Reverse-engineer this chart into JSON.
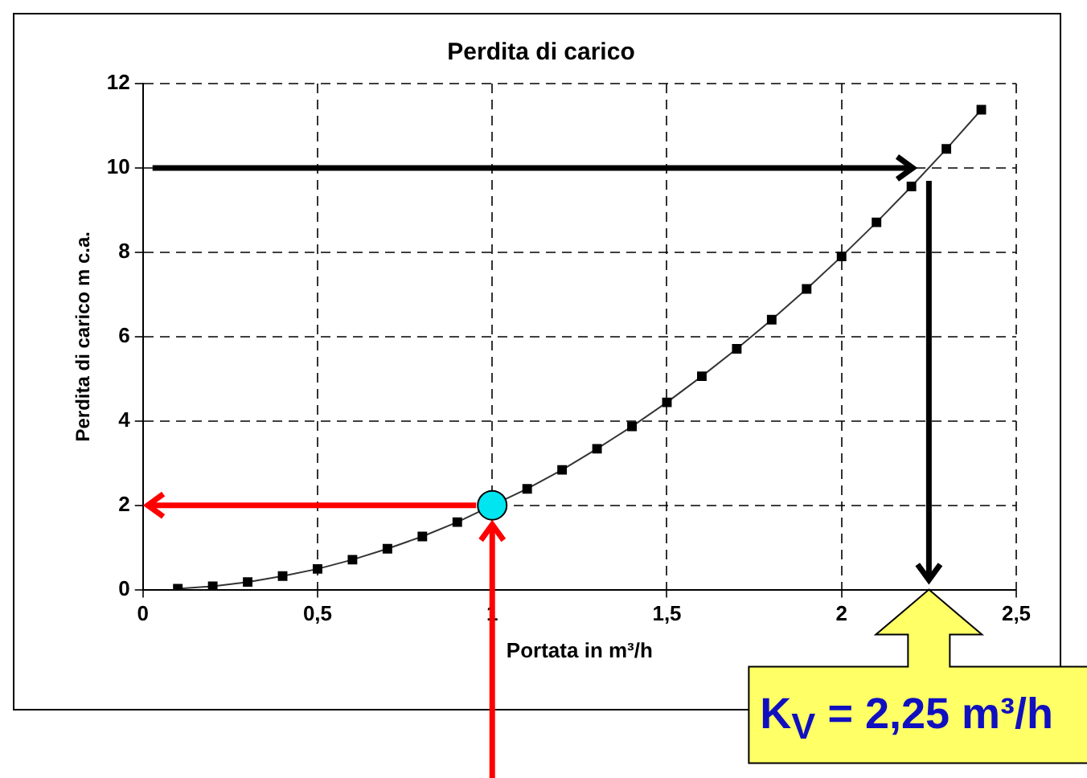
{
  "chart_data": {
    "type": "line",
    "title": "Perdita di carico",
    "xlabel": "Portata in m³/h",
    "ylabel": "Perdita di carico m c.a.",
    "xlim": [
      0,
      2.5
    ],
    "xticks": [
      0,
      {
        "value": 0.5,
        "label": "0,5"
      },
      1,
      {
        "value": 1.5,
        "label": "1,5"
      },
      2,
      {
        "value": 2.5,
        "label": "2,5"
      }
    ],
    "ylim": [
      0,
      12
    ],
    "yticks": [
      0,
      2,
      4,
      6,
      8,
      10,
      12
    ],
    "grid": true,
    "legend": false,
    "series": [
      {
        "marker": "square",
        "color": "#000000",
        "x": [
          0.1,
          0.2,
          0.3,
          0.4,
          0.5,
          0.6,
          0.7,
          0.8,
          0.9,
          1.0,
          1.1,
          1.2,
          1.3,
          1.4,
          1.5,
          1.6,
          1.7,
          1.8,
          1.9,
          2.0,
          2.1,
          2.2,
          2.3,
          2.4
        ],
        "values": [
          0.02,
          0.08,
          0.18,
          0.32,
          0.49,
          0.71,
          0.97,
          1.26,
          1.6,
          null,
          2.39,
          2.84,
          3.34,
          3.87,
          4.44,
          5.06,
          5.71,
          6.4,
          7.13,
          7.9,
          8.71,
          9.56,
          10.45,
          11.38
        ]
      },
      {
        "type": "scatter",
        "marker": "circle",
        "color": "#00e5f0",
        "x": [
          1.0
        ],
        "values": [
          2.0
        ]
      }
    ],
    "ref_lines": [
      {
        "axis": "y",
        "value": 10,
        "color": "#000000"
      },
      {
        "axis": "x",
        "value": 2.25,
        "color": "#000000"
      },
      {
        "axis": "y",
        "value": 2,
        "color": "#ff0000"
      },
      {
        "axis": "x",
        "value": 1,
        "color": "#ff0000"
      }
    ],
    "annotations": [
      "K$_{V}$ = 2,25 m³/h"
    ]
  }
}
